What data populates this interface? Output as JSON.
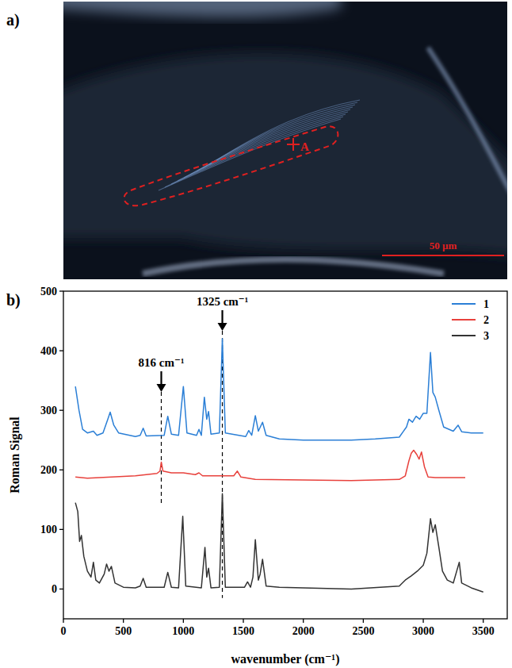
{
  "image_panel": {
    "panel_label": "a)",
    "marker_label": "A",
    "scale_bar_label": "50 µm"
  },
  "chart_data": {
    "type": "line",
    "panel_label": "b)",
    "x_label": "wavenumber (cm⁻¹)",
    "y_label": "Roman Signal",
    "xlim": [
      0,
      3700
    ],
    "ylim": [
      -50,
      500
    ],
    "xticks": [
      0,
      500,
      1000,
      1500,
      2000,
      2500,
      3000,
      3500
    ],
    "yticks": [
      0,
      100,
      200,
      300,
      400,
      500
    ],
    "grid": false,
    "legend": "top-right",
    "annotations": [
      {
        "x": 816,
        "label": "816 cm⁻¹"
      },
      {
        "x": 1325,
        "label": "1325 cm⁻¹"
      }
    ],
    "series": [
      {
        "name": "1",
        "color": "#2b7fd6",
        "x": [
          100,
          130,
          160,
          200,
          250,
          280,
          330,
          370,
          390,
          420,
          460,
          600,
          640,
          665,
          690,
          840,
          870,
          900,
          960,
          1000,
          1030,
          1110,
          1130,
          1150,
          1175,
          1195,
          1210,
          1230,
          1300,
          1325,
          1350,
          1520,
          1545,
          1570,
          1600,
          1625,
          1660,
          1690,
          1800,
          2000,
          2400,
          2600,
          2800,
          2860,
          2880,
          2910,
          2940,
          2970,
          3000,
          3030,
          3060,
          3080,
          3100,
          3130,
          3170,
          3250,
          3290,
          3320,
          3400,
          3500
        ],
        "values": [
          340,
          300,
          268,
          262,
          265,
          258,
          262,
          285,
          297,
          275,
          262,
          256,
          258,
          270,
          257,
          258,
          290,
          260,
          258,
          340,
          262,
          258,
          268,
          258,
          322,
          285,
          298,
          260,
          262,
          420,
          262,
          256,
          266,
          258,
          291,
          265,
          280,
          258,
          252,
          250,
          250,
          252,
          255,
          272,
          285,
          280,
          290,
          285,
          295,
          295,
          397,
          330,
          322,
          300,
          272,
          265,
          275,
          264,
          262,
          262
        ]
      },
      {
        "name": "2",
        "color": "#e8413c",
        "x": [
          100,
          200,
          400,
          600,
          780,
          805,
          816,
          830,
          900,
          1000,
          1100,
          1130,
          1160,
          1300,
          1420,
          1450,
          1480,
          1600,
          2000,
          2400,
          2800,
          2850,
          2880,
          2900,
          2920,
          2945,
          2965,
          2985,
          3010,
          3040,
          3100,
          3350
        ],
        "values": [
          188,
          186,
          188,
          190,
          194,
          198,
          213,
          198,
          195,
          195,
          192,
          195,
          190,
          190,
          190,
          198,
          188,
          184,
          183,
          182,
          184,
          190,
          215,
          228,
          233,
          226,
          218,
          230,
          205,
          188,
          187,
          187
        ]
      },
      {
        "name": "3",
        "color": "#333333",
        "x": [
          100,
          120,
          135,
          150,
          170,
          200,
          230,
          250,
          270,
          300,
          340,
          360,
          380,
          400,
          430,
          500,
          600,
          640,
          665,
          690,
          840,
          870,
          900,
          960,
          995,
          1020,
          1150,
          1180,
          1195,
          1210,
          1230,
          1300,
          1325,
          1350,
          1510,
          1535,
          1560,
          1580,
          1600,
          1625,
          1640,
          1660,
          1690,
          1800,
          2000,
          2400,
          2800,
          2850,
          2900,
          2950,
          3000,
          3030,
          3060,
          3080,
          3100,
          3130,
          3160,
          3200,
          3250,
          3300,
          3320,
          3400,
          3500
        ],
        "values": [
          145,
          130,
          80,
          90,
          55,
          30,
          20,
          45,
          15,
          10,
          25,
          42,
          30,
          38,
          10,
          3,
          2,
          5,
          18,
          3,
          3,
          28,
          3,
          2,
          122,
          5,
          2,
          70,
          20,
          35,
          2,
          3,
          160,
          3,
          3,
          12,
          3,
          20,
          83,
          15,
          25,
          50,
          5,
          3,
          2,
          0,
          5,
          15,
          22,
          30,
          40,
          60,
          118,
          95,
          108,
          70,
          30,
          15,
          10,
          45,
          10,
          2,
          -5
        ]
      }
    ]
  }
}
